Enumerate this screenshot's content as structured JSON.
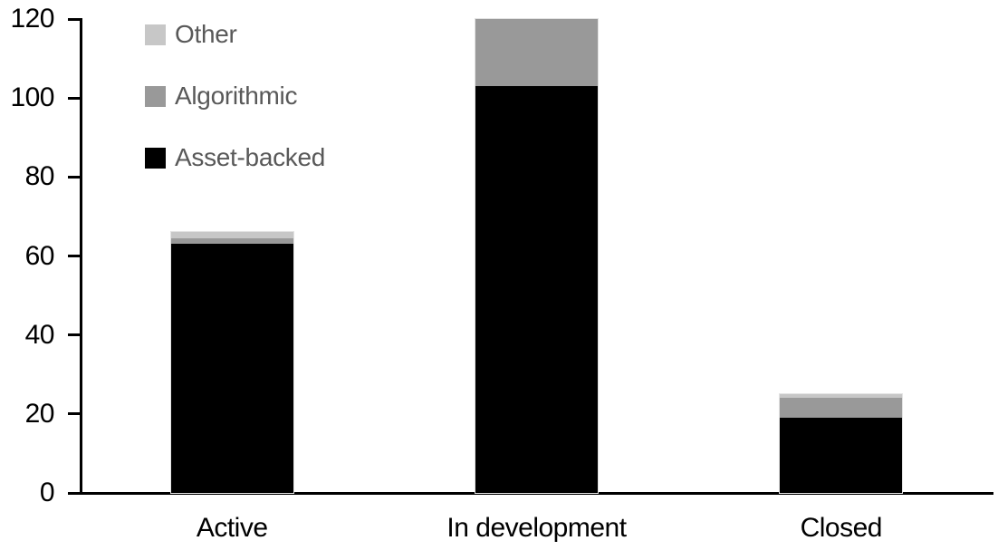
{
  "chart_data": {
    "type": "bar",
    "stacked": true,
    "title": "",
    "xlabel": "",
    "ylabel": "",
    "categories": [
      "Active",
      "In development",
      "Closed"
    ],
    "series": [
      {
        "name": "Asset-backed",
        "color": "#000000",
        "values": [
          63,
          103,
          19
        ]
      },
      {
        "name": "Algorithmic",
        "color": "#999999",
        "values": [
          1.5,
          17,
          5
        ]
      },
      {
        "name": "Other",
        "color": "#c7c7c7",
        "values": [
          1.5,
          0,
          1
        ]
      }
    ],
    "totals": [
      66,
      120,
      25
    ],
    "ylim": [
      0,
      120
    ],
    "yticks": [
      0,
      20,
      40,
      60,
      80,
      100,
      120
    ],
    "grid": false,
    "legend": {
      "position": "top-left",
      "order": [
        "Other",
        "Algorithmic",
        "Asset-backed"
      ],
      "text_color": "#595959"
    },
    "axis_color": "#000000",
    "background_color": "#ffffff"
  }
}
